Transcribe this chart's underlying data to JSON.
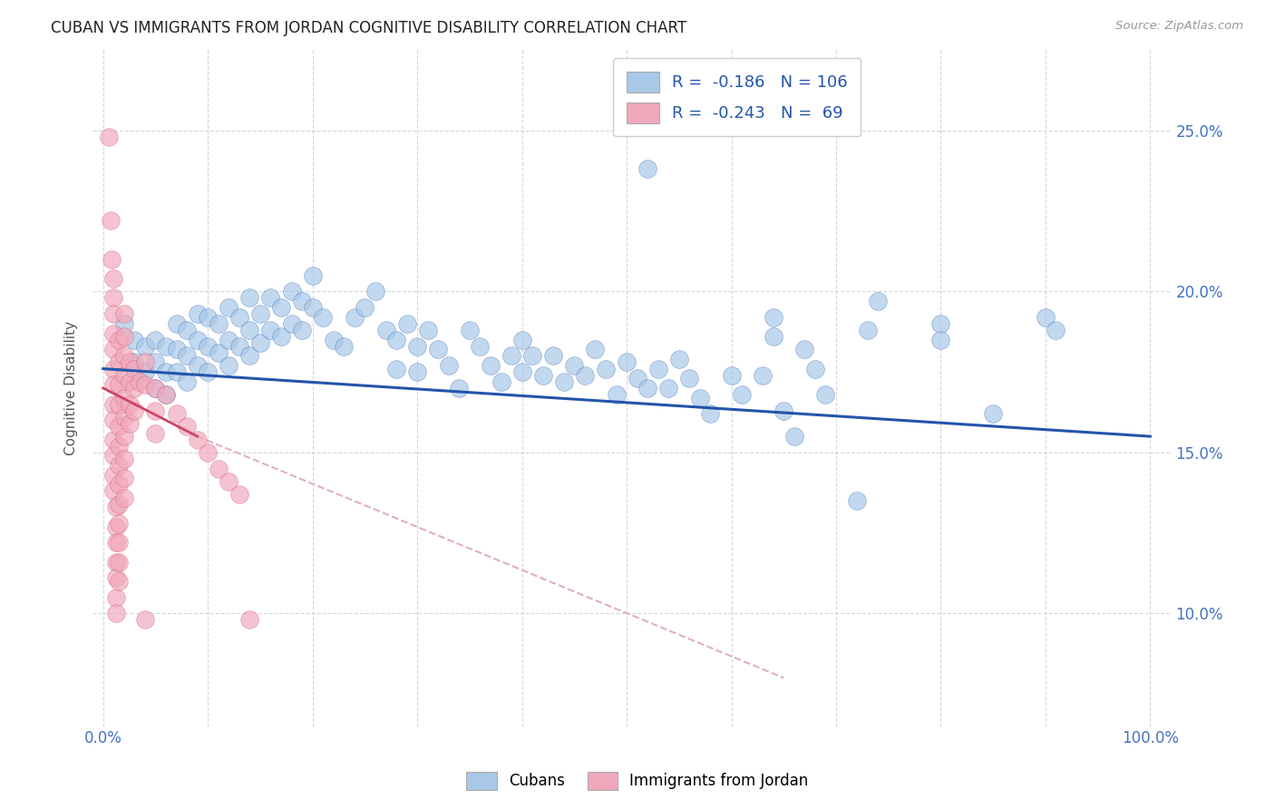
{
  "title": "CUBAN VS IMMIGRANTS FROM JORDAN COGNITIVE DISABILITY CORRELATION CHART",
  "source": "Source: ZipAtlas.com",
  "ylabel": "Cognitive Disability",
  "yticks": [
    0.1,
    0.15,
    0.2,
    0.25
  ],
  "ytick_labels": [
    "10.0%",
    "15.0%",
    "20.0%",
    "25.0%"
  ],
  "xlim": [
    -0.01,
    1.02
  ],
  "ylim": [
    0.065,
    0.275
  ],
  "legend_cubans_R": "-0.186",
  "legend_cubans_N": "106",
  "legend_jordan_R": "-0.243",
  "legend_jordan_N": "69",
  "cubans_color": "#a8c8e8",
  "jordan_color": "#f0a8bc",
  "trendline_cubans_color": "#2255aa",
  "trendline_jordan_solid_color": "#cc4466",
  "trendline_jordan_dash_color": "#e0b0b8",
  "background_color": "#ffffff",
  "grid_color": "#cccccc",
  "cubans_points": [
    [
      0.02,
      0.19
    ],
    [
      0.03,
      0.185
    ],
    [
      0.03,
      0.178
    ],
    [
      0.04,
      0.183
    ],
    [
      0.04,
      0.175
    ],
    [
      0.05,
      0.185
    ],
    [
      0.05,
      0.178
    ],
    [
      0.05,
      0.17
    ],
    [
      0.06,
      0.183
    ],
    [
      0.06,
      0.175
    ],
    [
      0.06,
      0.168
    ],
    [
      0.07,
      0.19
    ],
    [
      0.07,
      0.182
    ],
    [
      0.07,
      0.175
    ],
    [
      0.08,
      0.188
    ],
    [
      0.08,
      0.18
    ],
    [
      0.08,
      0.172
    ],
    [
      0.09,
      0.193
    ],
    [
      0.09,
      0.185
    ],
    [
      0.09,
      0.177
    ],
    [
      0.1,
      0.192
    ],
    [
      0.1,
      0.183
    ],
    [
      0.1,
      0.175
    ],
    [
      0.11,
      0.19
    ],
    [
      0.11,
      0.181
    ],
    [
      0.12,
      0.195
    ],
    [
      0.12,
      0.185
    ],
    [
      0.12,
      0.177
    ],
    [
      0.13,
      0.192
    ],
    [
      0.13,
      0.183
    ],
    [
      0.14,
      0.198
    ],
    [
      0.14,
      0.188
    ],
    [
      0.14,
      0.18
    ],
    [
      0.15,
      0.193
    ],
    [
      0.15,
      0.184
    ],
    [
      0.16,
      0.198
    ],
    [
      0.16,
      0.188
    ],
    [
      0.17,
      0.195
    ],
    [
      0.17,
      0.186
    ],
    [
      0.18,
      0.2
    ],
    [
      0.18,
      0.19
    ],
    [
      0.19,
      0.197
    ],
    [
      0.19,
      0.188
    ],
    [
      0.2,
      0.205
    ],
    [
      0.2,
      0.195
    ],
    [
      0.21,
      0.192
    ],
    [
      0.22,
      0.185
    ],
    [
      0.23,
      0.183
    ],
    [
      0.24,
      0.192
    ],
    [
      0.25,
      0.195
    ],
    [
      0.26,
      0.2
    ],
    [
      0.27,
      0.188
    ],
    [
      0.28,
      0.185
    ],
    [
      0.28,
      0.176
    ],
    [
      0.29,
      0.19
    ],
    [
      0.3,
      0.183
    ],
    [
      0.3,
      0.175
    ],
    [
      0.31,
      0.188
    ],
    [
      0.32,
      0.182
    ],
    [
      0.33,
      0.177
    ],
    [
      0.34,
      0.17
    ],
    [
      0.35,
      0.188
    ],
    [
      0.36,
      0.183
    ],
    [
      0.37,
      0.177
    ],
    [
      0.38,
      0.172
    ],
    [
      0.39,
      0.18
    ],
    [
      0.4,
      0.185
    ],
    [
      0.4,
      0.175
    ],
    [
      0.41,
      0.18
    ],
    [
      0.42,
      0.174
    ],
    [
      0.43,
      0.18
    ],
    [
      0.44,
      0.172
    ],
    [
      0.45,
      0.177
    ],
    [
      0.46,
      0.174
    ],
    [
      0.47,
      0.182
    ],
    [
      0.48,
      0.176
    ],
    [
      0.49,
      0.168
    ],
    [
      0.5,
      0.178
    ],
    [
      0.51,
      0.173
    ],
    [
      0.52,
      0.17
    ],
    [
      0.52,
      0.238
    ],
    [
      0.53,
      0.176
    ],
    [
      0.54,
      0.17
    ],
    [
      0.55,
      0.179
    ],
    [
      0.56,
      0.173
    ],
    [
      0.57,
      0.167
    ],
    [
      0.58,
      0.162
    ],
    [
      0.6,
      0.174
    ],
    [
      0.61,
      0.168
    ],
    [
      0.63,
      0.174
    ],
    [
      0.64,
      0.192
    ],
    [
      0.64,
      0.186
    ],
    [
      0.65,
      0.163
    ],
    [
      0.66,
      0.155
    ],
    [
      0.67,
      0.182
    ],
    [
      0.68,
      0.176
    ],
    [
      0.69,
      0.168
    ],
    [
      0.72,
      0.135
    ],
    [
      0.73,
      0.188
    ],
    [
      0.74,
      0.197
    ],
    [
      0.8,
      0.19
    ],
    [
      0.8,
      0.185
    ],
    [
      0.85,
      0.162
    ],
    [
      0.9,
      0.192
    ],
    [
      0.91,
      0.188
    ]
  ],
  "jordan_points": [
    [
      0.005,
      0.248
    ],
    [
      0.007,
      0.222
    ],
    [
      0.008,
      0.21
    ],
    [
      0.01,
      0.204
    ],
    [
      0.01,
      0.198
    ],
    [
      0.01,
      0.193
    ],
    [
      0.01,
      0.187
    ],
    [
      0.01,
      0.182
    ],
    [
      0.01,
      0.176
    ],
    [
      0.01,
      0.171
    ],
    [
      0.01,
      0.165
    ],
    [
      0.01,
      0.16
    ],
    [
      0.01,
      0.154
    ],
    [
      0.01,
      0.149
    ],
    [
      0.01,
      0.143
    ],
    [
      0.01,
      0.138
    ],
    [
      0.012,
      0.133
    ],
    [
      0.012,
      0.127
    ],
    [
      0.012,
      0.122
    ],
    [
      0.012,
      0.116
    ],
    [
      0.012,
      0.111
    ],
    [
      0.012,
      0.105
    ],
    [
      0.012,
      0.1
    ],
    [
      0.015,
      0.185
    ],
    [
      0.015,
      0.178
    ],
    [
      0.015,
      0.171
    ],
    [
      0.015,
      0.165
    ],
    [
      0.015,
      0.158
    ],
    [
      0.015,
      0.152
    ],
    [
      0.015,
      0.146
    ],
    [
      0.015,
      0.14
    ],
    [
      0.015,
      0.134
    ],
    [
      0.015,
      0.128
    ],
    [
      0.015,
      0.122
    ],
    [
      0.015,
      0.116
    ],
    [
      0.015,
      0.11
    ],
    [
      0.02,
      0.193
    ],
    [
      0.02,
      0.186
    ],
    [
      0.02,
      0.18
    ],
    [
      0.02,
      0.174
    ],
    [
      0.02,
      0.167
    ],
    [
      0.02,
      0.161
    ],
    [
      0.02,
      0.155
    ],
    [
      0.02,
      0.148
    ],
    [
      0.02,
      0.142
    ],
    [
      0.02,
      0.136
    ],
    [
      0.025,
      0.178
    ],
    [
      0.025,
      0.172
    ],
    [
      0.025,
      0.165
    ],
    [
      0.025,
      0.159
    ],
    [
      0.03,
      0.176
    ],
    [
      0.03,
      0.17
    ],
    [
      0.03,
      0.163
    ],
    [
      0.035,
      0.172
    ],
    [
      0.04,
      0.178
    ],
    [
      0.04,
      0.171
    ],
    [
      0.04,
      0.098
    ],
    [
      0.05,
      0.17
    ],
    [
      0.05,
      0.163
    ],
    [
      0.05,
      0.156
    ],
    [
      0.06,
      0.168
    ],
    [
      0.07,
      0.162
    ],
    [
      0.08,
      0.158
    ],
    [
      0.09,
      0.154
    ],
    [
      0.1,
      0.15
    ],
    [
      0.11,
      0.145
    ],
    [
      0.12,
      0.141
    ],
    [
      0.13,
      0.137
    ],
    [
      0.14,
      0.098
    ]
  ],
  "trendline_cubans": [
    [
      0.0,
      0.176
    ],
    [
      1.0,
      0.155
    ]
  ],
  "trendline_jordan_solid": [
    [
      0.0,
      0.17
    ],
    [
      0.09,
      0.155
    ]
  ],
  "trendline_jordan_dash": [
    [
      0.09,
      0.155
    ],
    [
      0.65,
      0.08
    ]
  ]
}
